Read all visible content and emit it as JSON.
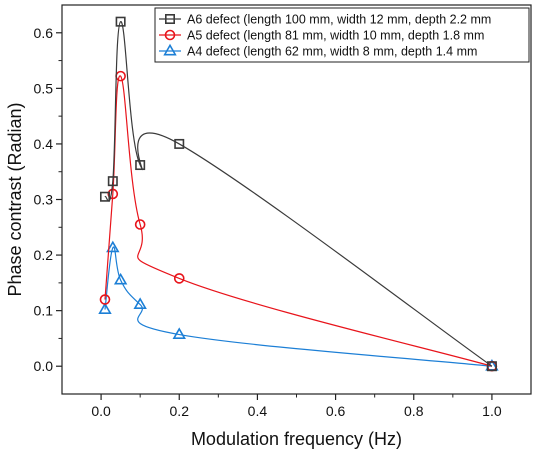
{
  "chart_data": {
    "type": "line",
    "xlabel": "Modulation frequency (Hz)",
    "ylabel": "Phase contrast (Radian)",
    "xlim": [
      -0.1,
      1.1
    ],
    "ylim": [
      -0.05,
      0.65
    ],
    "xticks": [
      0.0,
      0.2,
      0.4,
      0.6,
      0.8,
      1.0
    ],
    "xtick_labels": [
      "0.0",
      "0.2",
      "0.4",
      "0.6",
      "0.8",
      "1.0"
    ],
    "yticks": [
      0.0,
      0.1,
      0.2,
      0.3,
      0.4,
      0.5,
      0.6
    ],
    "ytick_labels": [
      "0.0",
      "0.1",
      "0.2",
      "0.3",
      "0.4",
      "0.5",
      "0.6"
    ],
    "grid": false,
    "legend_position": "top-right",
    "series": [
      {
        "name": "A6 defect (length 100 mm, width 12 mm, depth 2.2 mm",
        "color": "#3a3a3a",
        "marker": "square",
        "x": [
          0.01,
          0.03,
          0.05,
          0.1,
          0.2,
          1.0
        ],
        "y": [
          0.305,
          0.333,
          0.62,
          0.362,
          0.4,
          0.0
        ]
      },
      {
        "name": "A5 defect (length 81 mm, width 10 mm, depth 1.8 mm",
        "color": "#e8141b",
        "marker": "circle",
        "x": [
          0.01,
          0.03,
          0.05,
          0.1,
          0.2,
          1.0
        ],
        "y": [
          0.12,
          0.31,
          0.522,
          0.255,
          0.158,
          0.0
        ]
      },
      {
        "name": "A4 defect (length 62 mm, width 8 mm, depth 1.4 mm",
        "color": "#1c7fd6",
        "marker": "triangle",
        "x": [
          0.01,
          0.03,
          0.05,
          0.1,
          0.2,
          1.0
        ],
        "y": [
          0.102,
          0.213,
          0.155,
          0.111,
          0.057,
          0.0
        ]
      }
    ]
  }
}
